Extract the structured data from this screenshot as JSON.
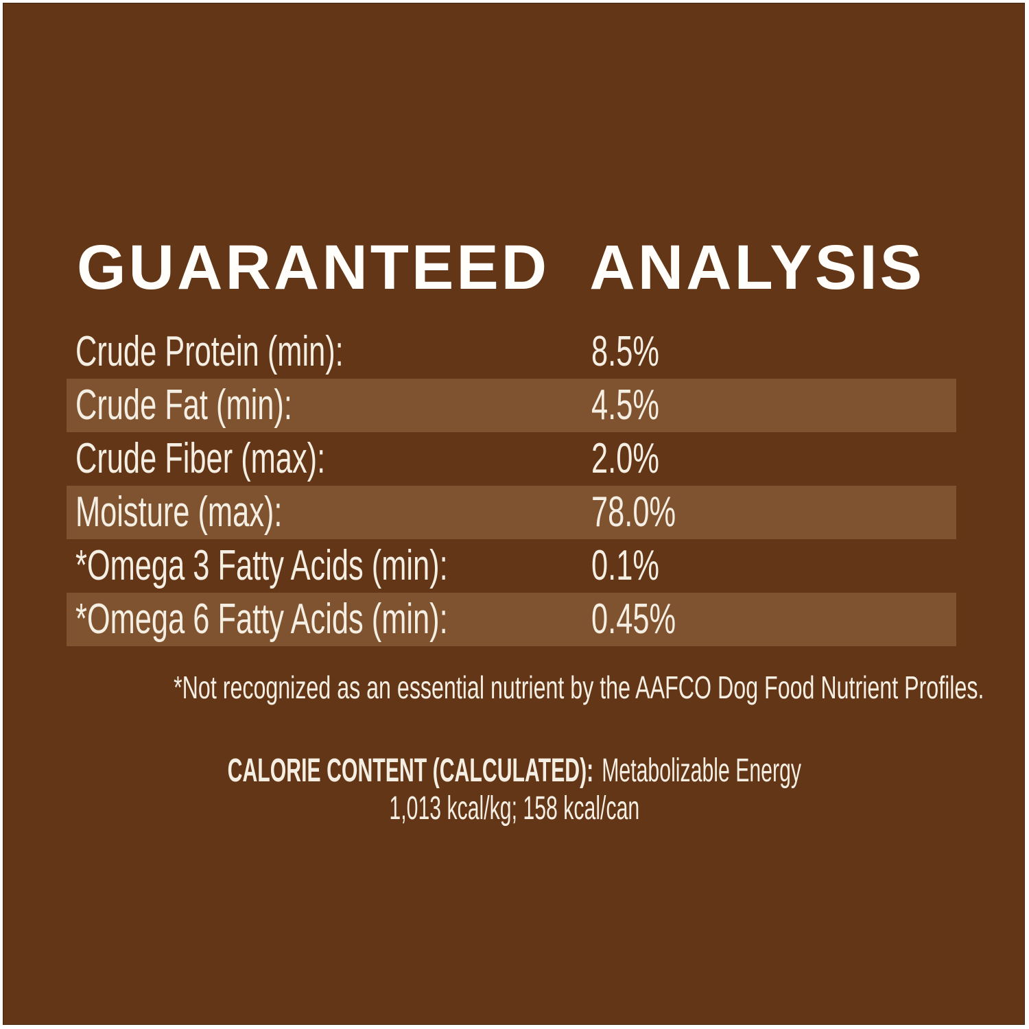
{
  "panel": {
    "title": "GUARANTEED ANALYSIS",
    "colors": {
      "frame": "#ffffff",
      "background": "#633617",
      "highlight_band": "#7f5330",
      "body_text": "#f5eee2",
      "title_text": "#fffefb"
    },
    "rows": [
      {
        "label": "Crude Protein (min):",
        "value": "8.5%"
      },
      {
        "label": "Crude Fat (min):",
        "value": "4.5%"
      },
      {
        "label": "Crude Fiber (max):",
        "value": "2.0%"
      },
      {
        "label": "Moisture (max):",
        "value": "78.0%"
      },
      {
        "label": "*Omega 3 Fatty Acids (min):",
        "value": "0.1%"
      },
      {
        "label": "*Omega 6 Fatty Acids (min):",
        "value": "0.45%"
      }
    ],
    "footnote": "*Not recognized as an essential nutrient by the AAFCO Dog Food Nutrient Profiles.",
    "calorie": {
      "heading": "CALORIE CONTENT (CALCULATED):",
      "subtitle": "Metabolizable Energy",
      "values_line": "1,013 kcal/kg; 158 kcal/can"
    }
  }
}
